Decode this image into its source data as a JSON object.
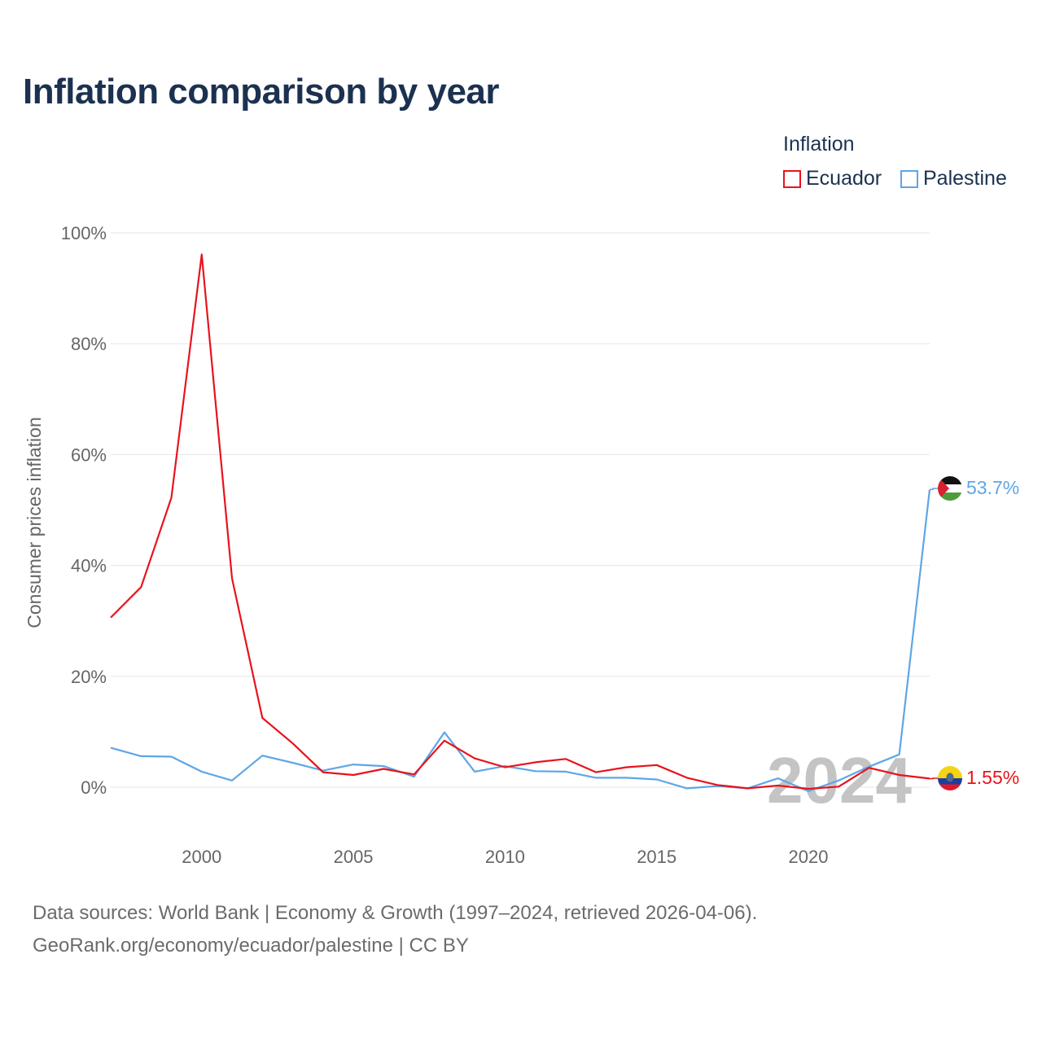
{
  "title": "Inflation comparison by year",
  "legend": {
    "title": "Inflation",
    "items": [
      {
        "label": "Ecuador",
        "color": "#e8131b"
      },
      {
        "label": "Palestine",
        "color": "#5ea6e6"
      }
    ]
  },
  "chart_data": {
    "type": "line",
    "title": "Inflation comparison by year",
    "xlabel": "",
    "ylabel": "Consumer prices inflation",
    "ylim": [
      0,
      100
    ],
    "xlim": [
      1997,
      2024
    ],
    "y_ticks": [
      0,
      20,
      40,
      60,
      80,
      100
    ],
    "y_tick_labels": [
      "0%",
      "20%",
      "40%",
      "60%",
      "80%",
      "100%"
    ],
    "x_ticks": [
      2000,
      2005,
      2010,
      2015,
      2020
    ],
    "x_tick_labels": [
      "2000",
      "2005",
      "2010",
      "2015",
      "2020"
    ],
    "grid": true,
    "legend_position": "top-right",
    "year_watermark": "2024",
    "x": [
      1997,
      1998,
      1999,
      2000,
      2001,
      2002,
      2003,
      2004,
      2005,
      2006,
      2007,
      2008,
      2009,
      2010,
      2011,
      2012,
      2013,
      2014,
      2015,
      2016,
      2017,
      2018,
      2019,
      2020,
      2021,
      2022,
      2023,
      2024
    ],
    "series": [
      {
        "name": "Ecuador",
        "color": "#e8131b",
        "end_label": "1.55%",
        "flag": "ecuador-flag",
        "values": [
          30.6,
          36.1,
          52.2,
          96.1,
          37.7,
          12.5,
          7.9,
          2.7,
          2.2,
          3.3,
          2.3,
          8.4,
          5.2,
          3.6,
          4.5,
          5.1,
          2.7,
          3.6,
          4.0,
          1.7,
          0.4,
          -0.2,
          0.3,
          -0.3,
          0.1,
          3.5,
          2.2,
          1.55
        ]
      },
      {
        "name": "Palestine",
        "color": "#5ea6e6",
        "end_label": "53.7%",
        "flag": "palestine-flag",
        "values": [
          7.1,
          5.6,
          5.5,
          2.8,
          1.2,
          5.7,
          4.4,
          3.0,
          4.1,
          3.8,
          1.9,
          9.9,
          2.8,
          3.8,
          2.9,
          2.8,
          1.7,
          1.7,
          1.4,
          -0.2,
          0.2,
          -0.2,
          1.6,
          -0.7,
          1.2,
          3.7,
          5.9,
          53.7
        ]
      }
    ]
  },
  "source": {
    "line1": "Data sources: World Bank | Economy & Growth (1997–2024, retrieved 2026-04-06).",
    "line2": "GeoRank.org/economy/ecuador/palestine | CC BY"
  }
}
